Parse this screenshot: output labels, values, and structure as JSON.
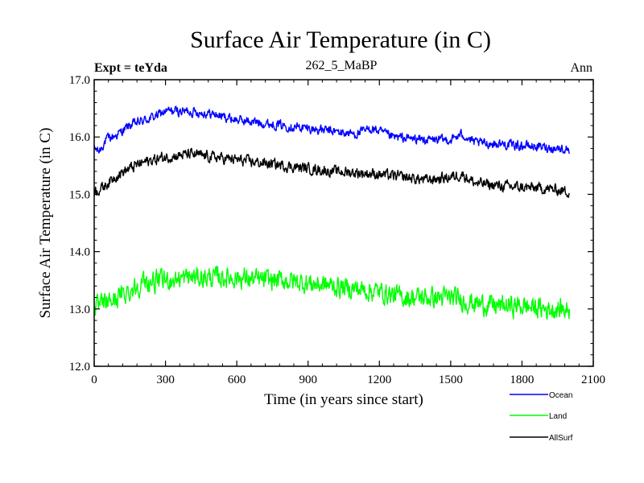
{
  "chart_data": {
    "type": "line",
    "title": "Surface Air Temperature (in C)",
    "subtitle": "262_5_MaBP",
    "left_label": "Expt = teYda",
    "right_label": "Ann",
    "xlabel": "Time (in years since start)",
    "ylabel": "Surface Air Temperature (in C)",
    "xlim": [
      0,
      2100
    ],
    "ylim": [
      12.0,
      17.0
    ],
    "xticks": [
      0,
      300,
      600,
      900,
      1200,
      1500,
      1800,
      2100
    ],
    "xtick_labels": [
      "0",
      "300",
      "600",
      "900",
      "1200",
      "1500",
      "1800",
      "2100"
    ],
    "yticks": [
      12.0,
      13.0,
      14.0,
      15.0,
      16.0,
      17.0
    ],
    "ytick_labels": [
      "12.0",
      "13.0",
      "14.0",
      "15.0",
      "16.0",
      "17.0"
    ],
    "grid": false,
    "legend_position": "bottom-right",
    "series": [
      {
        "name": "Ocean",
        "color": "#0000ff",
        "noise": 0.07,
        "knots": [
          [
            0,
            15.8
          ],
          [
            20,
            15.75
          ],
          [
            50,
            15.95
          ],
          [
            100,
            16.05
          ],
          [
            150,
            16.2
          ],
          [
            250,
            16.35
          ],
          [
            300,
            16.45
          ],
          [
            400,
            16.45
          ],
          [
            500,
            16.4
          ],
          [
            600,
            16.3
          ],
          [
            700,
            16.25
          ],
          [
            800,
            16.2
          ],
          [
            900,
            16.15
          ],
          [
            1000,
            16.1
          ],
          [
            1100,
            16.05
          ],
          [
            1170,
            16.15
          ],
          [
            1250,
            16.0
          ],
          [
            1400,
            15.95
          ],
          [
            1500,
            15.95
          ],
          [
            1550,
            16.05
          ],
          [
            1600,
            15.9
          ],
          [
            1700,
            15.88
          ],
          [
            1800,
            15.85
          ],
          [
            1900,
            15.82
          ],
          [
            2000,
            15.78
          ]
        ]
      },
      {
        "name": "Land",
        "color": "#00ff00",
        "noise": 0.15,
        "knots": [
          [
            0,
            13.0
          ],
          [
            50,
            13.1
          ],
          [
            100,
            13.2
          ],
          [
            200,
            13.45
          ],
          [
            300,
            13.5
          ],
          [
            400,
            13.55
          ],
          [
            500,
            13.55
          ],
          [
            600,
            13.55
          ],
          [
            700,
            13.5
          ],
          [
            800,
            13.5
          ],
          [
            900,
            13.45
          ],
          [
            1000,
            13.4
          ],
          [
            1100,
            13.35
          ],
          [
            1200,
            13.3
          ],
          [
            1300,
            13.2
          ],
          [
            1400,
            13.2
          ],
          [
            1500,
            13.2
          ],
          [
            1600,
            13.1
          ],
          [
            1700,
            13.05
          ],
          [
            1800,
            13.05
          ],
          [
            1900,
            13.0
          ],
          [
            2000,
            13.0
          ]
        ]
      },
      {
        "name": "AllSurf",
        "color": "#000000",
        "noise": 0.08,
        "knots": [
          [
            0,
            15.05
          ],
          [
            30,
            15.1
          ],
          [
            100,
            15.35
          ],
          [
            200,
            15.55
          ],
          [
            300,
            15.65
          ],
          [
            400,
            15.7
          ],
          [
            500,
            15.65
          ],
          [
            600,
            15.6
          ],
          [
            700,
            15.55
          ],
          [
            800,
            15.5
          ],
          [
            900,
            15.45
          ],
          [
            1000,
            15.4
          ],
          [
            1100,
            15.38
          ],
          [
            1200,
            15.35
          ],
          [
            1300,
            15.3
          ],
          [
            1400,
            15.25
          ],
          [
            1500,
            15.3
          ],
          [
            1550,
            15.35
          ],
          [
            1600,
            15.2
          ],
          [
            1700,
            15.15
          ],
          [
            1800,
            15.12
          ],
          [
            1900,
            15.1
          ],
          [
            2000,
            15.05
          ]
        ]
      }
    ]
  }
}
